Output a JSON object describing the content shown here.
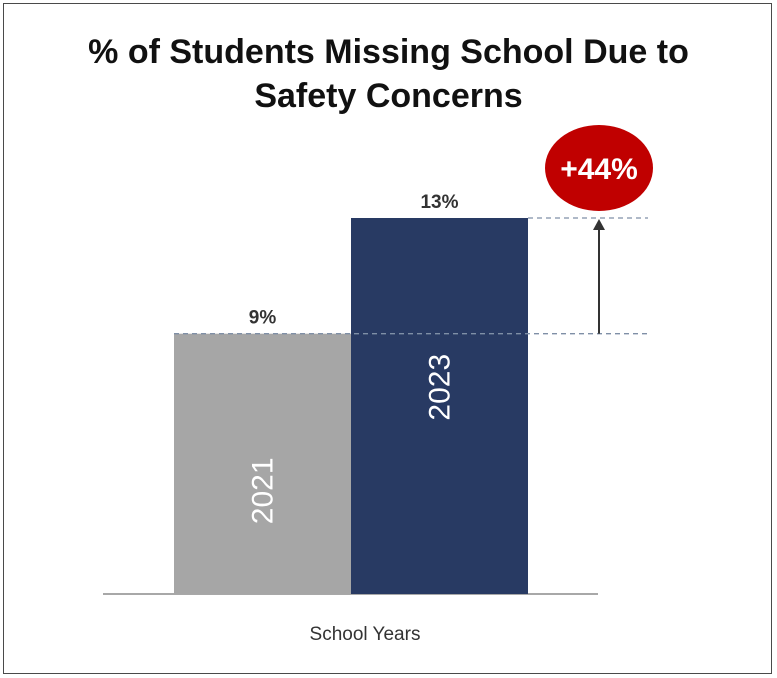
{
  "title_line1": "% of Students Missing School Due to",
  "title_line2": "Safety Concerns",
  "badge": "+44%",
  "chart_data": {
    "type": "bar",
    "title": "% of Students Missing School Due to Safety Concerns",
    "xlabel": "School Years",
    "ylabel": "",
    "categories": [
      "2021",
      "2023"
    ],
    "values": [
      9,
      13
    ],
    "value_labels": [
      "9%",
      "13%"
    ],
    "colors": [
      "#a6a6a6",
      "#283a63"
    ],
    "grid": false,
    "legend": "none",
    "annotation": {
      "text": "+44%",
      "color": "#c00000"
    }
  }
}
